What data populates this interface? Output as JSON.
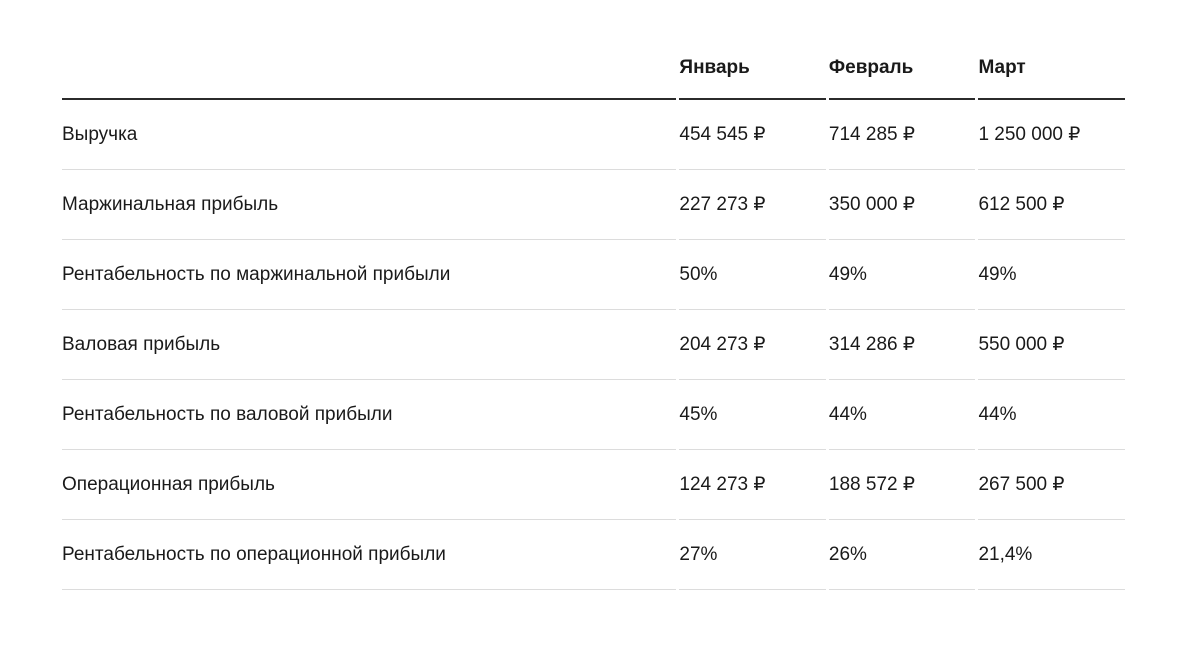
{
  "page": {
    "background_color": "#ffffff",
    "text_color": "#1a1a1a",
    "header_rule_color": "#2b2b2b",
    "row_rule_color": "#dcdcdc"
  },
  "table": {
    "name": "monthly-pnl-table",
    "currency_symbol": "₽",
    "columns": [
      "",
      "Январь",
      "Февраль",
      "Март"
    ],
    "rows": [
      {
        "label": "Выручка",
        "values": [
          "454 545 ₽",
          "714 285 ₽",
          "1 250 000 ₽"
        ]
      },
      {
        "label": "Маржинальная прибыль",
        "values": [
          "227 273 ₽",
          "350 000 ₽",
          "612 500 ₽"
        ]
      },
      {
        "label": "Рентабельность по маржинальной прибыли",
        "values": [
          "50%",
          "49%",
          "49%"
        ]
      },
      {
        "label": "Валовая прибыль",
        "values": [
          "204 273 ₽",
          "314 286 ₽",
          "550 000 ₽"
        ]
      },
      {
        "label": "Рентабельность по валовой прибыли",
        "values": [
          "45%",
          "44%",
          "44%"
        ]
      },
      {
        "label": "Операционная прибыль",
        "values": [
          "124 273 ₽",
          "188 572 ₽",
          "267 500 ₽"
        ]
      },
      {
        "label": "Рентабельность по операционной прибыли",
        "values": [
          "27%",
          "26%",
          "21,4%"
        ]
      }
    ]
  }
}
